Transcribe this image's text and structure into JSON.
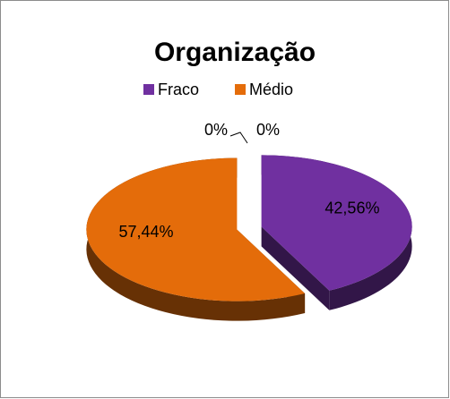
{
  "chart_data": {
    "type": "pie3d",
    "title": "Organização",
    "categories": [
      "Fraco",
      "Médio",
      null,
      null
    ],
    "values": [
      42.56,
      57.44,
      0,
      0
    ],
    "value_labels": [
      "42,56%",
      "57,44%",
      "0%",
      "0%"
    ],
    "colors": [
      "#7030a0",
      "#e46c0a",
      "#4f81bd",
      "#9bbb59"
    ],
    "legend": "top"
  }
}
